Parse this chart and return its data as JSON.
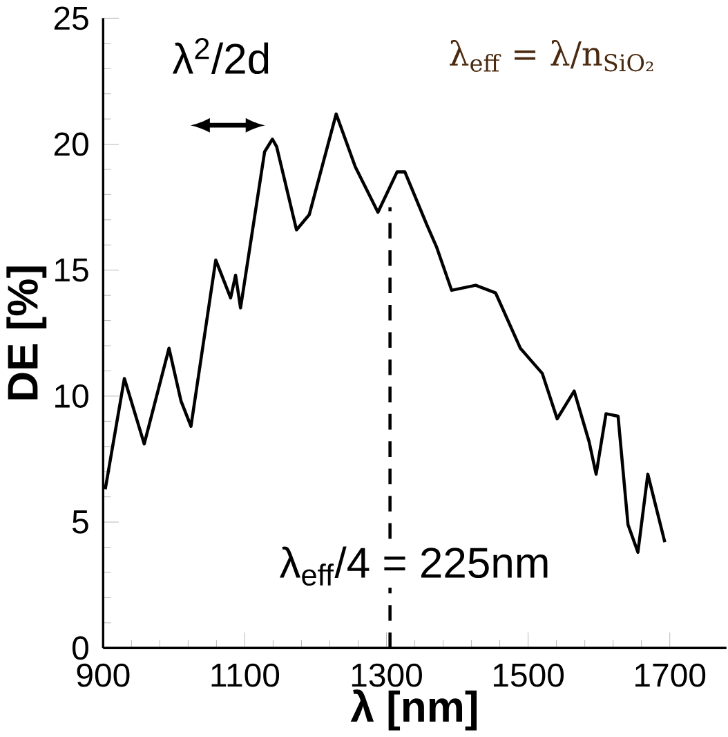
{
  "chart_data": {
    "type": "line",
    "xlabel": "λ [nm]",
    "ylabel": "DE [%]",
    "x": [
      903,
      930,
      958,
      993,
      1010,
      1024,
      1059,
      1080,
      1087,
      1094,
      1128,
      1139,
      1145,
      1173,
      1191,
      1229,
      1256,
      1288,
      1315,
      1326,
      1357,
      1371,
      1392,
      1426,
      1454,
      1489,
      1520,
      1541,
      1565,
      1586,
      1596,
      1610,
      1627,
      1641,
      1655,
      1669,
      1693
    ],
    "series": [
      {
        "color": "#000000",
        "values": [
          6.3,
          10.7,
          8.1,
          11.9,
          9.8,
          8.8,
          15.4,
          13.9,
          14.8,
          13.5,
          19.7,
          20.2,
          19.9,
          16.6,
          17.2,
          21.2,
          19.1,
          17.3,
          18.9,
          18.9,
          16.8,
          15.9,
          14.2,
          14.4,
          14.1,
          11.9,
          10.9,
          9.1,
          10.2,
          8.2,
          6.9,
          9.3,
          9.2,
          4.9,
          3.8,
          6.9,
          4.2
        ]
      }
    ],
    "xlim": [
      900,
      1780
    ],
    "ylim": [
      0,
      25
    ],
    "xticks": [
      900,
      1100,
      1300,
      1500,
      1700
    ],
    "yticks": [
      0,
      5,
      10,
      15,
      20,
      25
    ],
    "grid": false,
    "marker": "none",
    "line_style": "solid",
    "ref_lines": [
      {
        "axis": "x",
        "value": 1305,
        "line_style": "dashed"
      }
    ],
    "annotations": [
      "λ$^{2}$/2d",
      "λ$_{eff}$ = λ/n$_{SiO₂}$",
      "λ$_{eff}$/4 = 225nm"
    ]
  }
}
